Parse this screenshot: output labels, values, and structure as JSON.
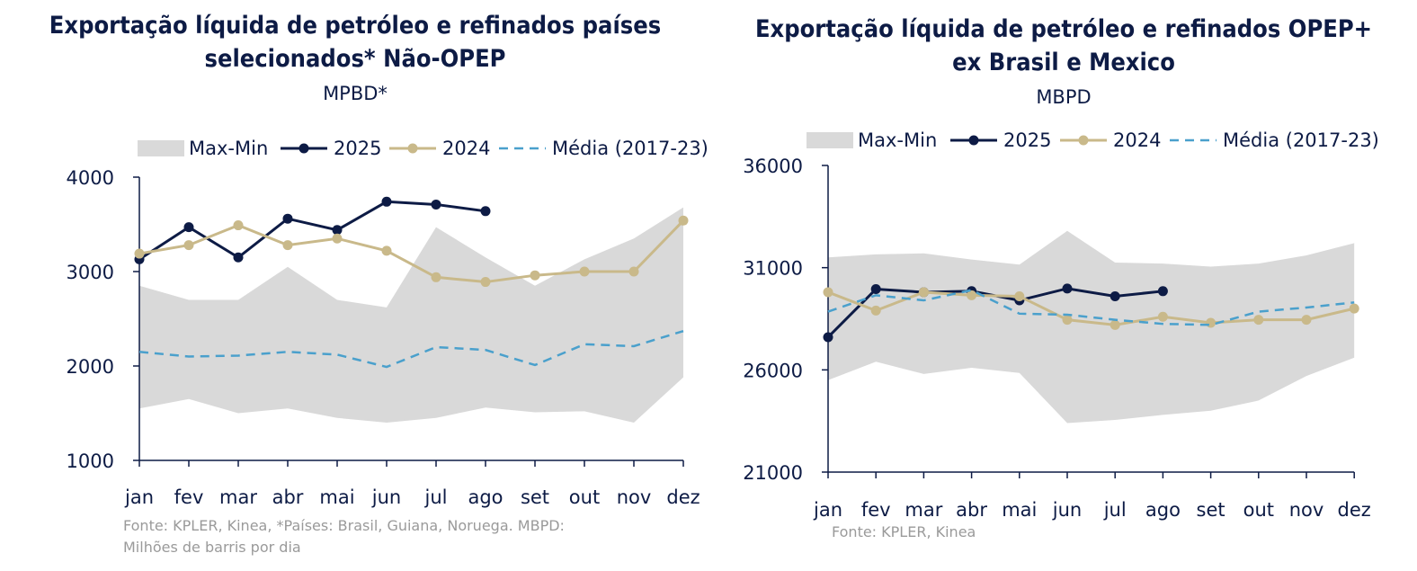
{
  "colors": {
    "band": "#d9d9d9",
    "s2025": "#0d1b45",
    "s2024": "#c9b98a",
    "media": "#4aa0cc",
    "axis": "#0d1b45",
    "text": "#0d1b45",
    "source": "#9a9a9a"
  },
  "legend_labels": {
    "band": "Max-Min",
    "s2025": "2025",
    "s2024": "2024",
    "media": "Média (2017-23)"
  },
  "chart_data": [
    {
      "type": "line",
      "title": "Exportação líquida de petróleo e refinados países selecionados* Não-OPEP",
      "subtitle": "MPBD*",
      "source": "Fonte: KPLER, Kinea, *Países: Brasil, Guiana, Noruega. MBPD: Milhões de barris por dia",
      "categories": [
        "jan",
        "fev",
        "mar",
        "abr",
        "mai",
        "jun",
        "jul",
        "ago",
        "set",
        "out",
        "nov",
        "dez"
      ],
      "ylim": [
        1000,
        4000
      ],
      "yticks": [
        1000,
        2000,
        3000,
        4000
      ],
      "legend": "top",
      "band": {
        "name": "Max-Min",
        "max": [
          2850,
          2700,
          2700,
          3050,
          2700,
          2620,
          3470,
          3150,
          2850,
          3130,
          3350,
          3680
        ],
        "min": [
          1550,
          1650,
          1500,
          1550,
          1450,
          1400,
          1450,
          1560,
          1510,
          1520,
          1400,
          1880
        ]
      },
      "series": [
        {
          "name": "2025",
          "key": "s2025",
          "style": "solid-marker",
          "values": [
            3130,
            3470,
            3150,
            3560,
            3440,
            3740,
            3710,
            3640,
            null,
            null,
            null,
            null
          ]
        },
        {
          "name": "2024",
          "key": "s2024",
          "style": "solid-marker",
          "values": [
            3190,
            3280,
            3490,
            3280,
            3350,
            3220,
            2940,
            2890,
            2960,
            3000,
            3000,
            3540
          ]
        },
        {
          "name": "Média (2017-23)",
          "key": "media",
          "style": "dashed",
          "values": [
            2150,
            2100,
            2110,
            2150,
            2120,
            1990,
            2200,
            2170,
            2010,
            2230,
            2210,
            2370
          ]
        }
      ]
    },
    {
      "type": "line",
      "title": "Exportação líquida de petróleo e refinados OPEP+ ex Brasil e Mexico",
      "subtitle": "MBPD",
      "source": "Fonte: KPLER, Kinea",
      "categories": [
        "jan",
        "fev",
        "mar",
        "abr",
        "mai",
        "jun",
        "jul",
        "ago",
        "set",
        "out",
        "nov",
        "dez"
      ],
      "ylim": [
        21000,
        36000
      ],
      "yticks": [
        21000,
        26000,
        31000,
        36000
      ],
      "legend": "top",
      "band": {
        "name": "Max-Min",
        "max": [
          31500,
          31650,
          31700,
          31400,
          31150,
          32800,
          31250,
          31200,
          31050,
          31200,
          31600,
          32200
        ],
        "min": [
          25500,
          26400,
          25800,
          26100,
          25850,
          23400,
          23550,
          23800,
          24000,
          24500,
          25700,
          26600
        ]
      },
      "series": [
        {
          "name": "2025",
          "key": "s2025",
          "style": "solid-marker",
          "values": [
            27600,
            29950,
            29800,
            29850,
            29400,
            29980,
            29600,
            29850,
            null,
            null,
            null,
            null
          ]
        },
        {
          "name": "2024",
          "key": "s2024",
          "style": "solid-marker",
          "values": [
            29800,
            28900,
            29800,
            29650,
            29600,
            28450,
            28200,
            28600,
            28300,
            28450,
            28450,
            29000
          ]
        },
        {
          "name": "Média (2017-23)",
          "key": "media",
          "style": "dashed",
          "values": [
            28850,
            29650,
            29400,
            29900,
            28750,
            28700,
            28450,
            28250,
            28200,
            28850,
            29050,
            29300
          ]
        }
      ]
    }
  ]
}
